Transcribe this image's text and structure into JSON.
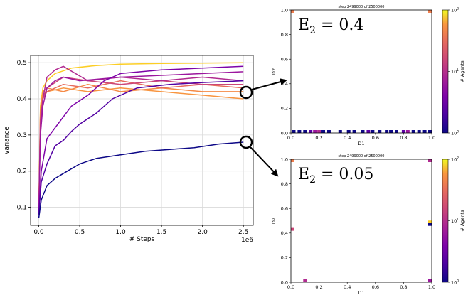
{
  "chart_data": [
    {
      "type": "line",
      "xlabel": "# Steps",
      "ylabel": "variance",
      "x_offset_label": "1e6",
      "xlim": [
        -0.1,
        2.62
      ],
      "ylim": [
        0.05,
        0.52
      ],
      "xticks": [
        0.0,
        0.5,
        1.0,
        1.5,
        2.0,
        2.5
      ],
      "xtick_labels": [
        "0.0",
        "0.5",
        "1.0",
        "1.5",
        "2.0",
        "2.5"
      ],
      "yticks": [
        0.1,
        0.2,
        0.3,
        0.4,
        0.5
      ],
      "ytick_labels": [
        "0.1",
        "0.2",
        "0.3",
        "0.4",
        "0.5"
      ],
      "grid": true,
      "series": [
        {
          "color": "#fcce25",
          "x": [
            0,
            0.02,
            0.05,
            0.1,
            0.2,
            0.4,
            0.7,
            1.0,
            1.5,
            2.0,
            2.5
          ],
          "values": [
            0.08,
            0.38,
            0.43,
            0.45,
            0.47,
            0.485,
            0.492,
            0.496,
            0.498,
            0.499,
            0.5
          ]
        },
        {
          "color": "#f89540",
          "x": [
            0,
            0.02,
            0.05,
            0.1,
            0.3,
            0.6,
            1.0,
            1.5,
            2.0,
            2.5
          ],
          "values": [
            0.08,
            0.36,
            0.41,
            0.42,
            0.43,
            0.42,
            0.43,
            0.42,
            0.41,
            0.4
          ]
        },
        {
          "color": "#f58a46",
          "x": [
            0,
            0.02,
            0.05,
            0.1,
            0.3,
            0.6,
            1.0,
            1.5,
            2.0,
            2.5
          ],
          "values": [
            0.08,
            0.37,
            0.42,
            0.43,
            0.42,
            0.44,
            0.42,
            0.43,
            0.42,
            0.42
          ]
        },
        {
          "color": "#e66c5c",
          "x": [
            0,
            0.02,
            0.05,
            0.1,
            0.3,
            0.6,
            1.0,
            1.5,
            2.0,
            2.5
          ],
          "values": [
            0.08,
            0.36,
            0.4,
            0.42,
            0.44,
            0.43,
            0.45,
            0.43,
            0.44,
            0.43
          ]
        },
        {
          "color": "#cc4778",
          "x": [
            0,
            0.02,
            0.05,
            0.1,
            0.3,
            0.6,
            1.0,
            1.5,
            2.0,
            2.5
          ],
          "values": [
            0.08,
            0.34,
            0.4,
            0.43,
            0.46,
            0.45,
            0.44,
            0.45,
            0.44,
            0.44
          ]
        },
        {
          "color": "#b12a90",
          "x": [
            0,
            0.02,
            0.05,
            0.1,
            0.2,
            0.3,
            0.6,
            1.0,
            1.5,
            2.0,
            2.5
          ],
          "values": [
            0.08,
            0.33,
            0.4,
            0.46,
            0.48,
            0.49,
            0.45,
            0.46,
            0.45,
            0.46,
            0.45
          ]
        },
        {
          "color": "#9c179e",
          "x": [
            0,
            0.02,
            0.05,
            0.1,
            0.2,
            0.3,
            0.5,
            1.0,
            1.5,
            2.0,
            2.5
          ],
          "values": [
            0.08,
            0.3,
            0.38,
            0.43,
            0.45,
            0.46,
            0.45,
            0.46,
            0.465,
            0.47,
            0.475
          ]
        },
        {
          "color": "#7e03a8",
          "x": [
            0,
            0.03,
            0.1,
            0.2,
            0.3,
            0.4,
            0.6,
            0.8,
            1.0,
            1.5,
            2.0,
            2.5
          ],
          "values": [
            0.08,
            0.2,
            0.29,
            0.32,
            0.35,
            0.38,
            0.41,
            0.45,
            0.47,
            0.48,
            0.485,
            0.49
          ]
        },
        {
          "color": "#5302a3",
          "x": [
            0,
            0.03,
            0.1,
            0.2,
            0.3,
            0.4,
            0.5,
            0.7,
            0.9,
            1.2,
            1.6,
            2.0,
            2.5
          ],
          "values": [
            0.08,
            0.17,
            0.22,
            0.27,
            0.285,
            0.31,
            0.33,
            0.36,
            0.4,
            0.43,
            0.44,
            0.445,
            0.45
          ]
        },
        {
          "color": "#0d0887",
          "x": [
            0,
            0.03,
            0.1,
            0.2,
            0.35,
            0.5,
            0.7,
            1.0,
            1.3,
            1.6,
            1.9,
            2.2,
            2.5
          ],
          "values": [
            0.07,
            0.12,
            0.16,
            0.18,
            0.2,
            0.22,
            0.235,
            0.245,
            0.255,
            0.26,
            0.265,
            0.275,
            0.28
          ]
        }
      ]
    },
    {
      "type": "heatmap",
      "title": "step 2499000 of 2500000",
      "xlabel": "D1",
      "ylabel": "D2",
      "annotation": "E2 = 0.4",
      "xlim": [
        0,
        1
      ],
      "ylim": [
        0,
        1
      ],
      "xtick_labels": [
        "0.0",
        "0.2",
        "0.4",
        "0.6",
        "0.8",
        "1.0"
      ],
      "ytick_labels": [
        "0.0",
        "0.2",
        "0.4",
        "0.6",
        "0.8",
        "1.0"
      ],
      "colorbar": {
        "label": "# Agents",
        "scale": "log",
        "tick_labels": [
          "10^0",
          "10^1",
          "10^2"
        ]
      },
      "cells": [
        {
          "x": 0.0,
          "y": 1.0,
          "color": "#f07f4f"
        },
        {
          "x": 1.0,
          "y": 1.0,
          "color": "#f07f4f"
        },
        {
          "x": 0.02,
          "y": 0.0,
          "color": "#0d0887"
        },
        {
          "x": 0.06,
          "y": 0.0,
          "color": "#0d0887"
        },
        {
          "x": 0.1,
          "y": 0.0,
          "color": "#0d0887"
        },
        {
          "x": 0.14,
          "y": 0.0,
          "color": "#5c01a6"
        },
        {
          "x": 0.17,
          "y": 0.0,
          "color": "#9c179e"
        },
        {
          "x": 0.2,
          "y": 0.0,
          "color": "#b12a90"
        },
        {
          "x": 0.23,
          "y": 0.0,
          "color": "#0d0887"
        },
        {
          "x": 0.27,
          "y": 0.0,
          "color": "#0d0887"
        },
        {
          "x": 0.35,
          "y": 0.0,
          "color": "#0d0887"
        },
        {
          "x": 0.41,
          "y": 0.0,
          "color": "#0d0887"
        },
        {
          "x": 0.45,
          "y": 0.0,
          "color": "#0d0887"
        },
        {
          "x": 0.51,
          "y": 0.0,
          "color": "#0d0887"
        },
        {
          "x": 0.55,
          "y": 0.0,
          "color": "#5c01a6"
        },
        {
          "x": 0.58,
          "y": 0.0,
          "color": "#0d0887"
        },
        {
          "x": 0.63,
          "y": 0.0,
          "color": "#0d0887"
        },
        {
          "x": 0.68,
          "y": 0.0,
          "color": "#0d0887"
        },
        {
          "x": 0.71,
          "y": 0.0,
          "color": "#0d0887"
        },
        {
          "x": 0.75,
          "y": 0.0,
          "color": "#0d0887"
        },
        {
          "x": 0.8,
          "y": 0.0,
          "color": "#5c01a6"
        },
        {
          "x": 0.83,
          "y": 0.0,
          "color": "#9c179e"
        },
        {
          "x": 0.87,
          "y": 0.0,
          "color": "#0d0887"
        },
        {
          "x": 0.91,
          "y": 0.0,
          "color": "#0d0887"
        },
        {
          "x": 0.95,
          "y": 0.0,
          "color": "#0d0887"
        },
        {
          "x": 0.99,
          "y": 0.0,
          "color": "#0d0887"
        }
      ]
    },
    {
      "type": "heatmap",
      "title": "step 2499000 of 2500000",
      "xlabel": "D1",
      "ylabel": "D2",
      "annotation": "E2 = 0.05",
      "xlim": [
        0,
        1
      ],
      "ylim": [
        0,
        1
      ],
      "xtick_labels": [
        "0.0",
        "0.2",
        "0.4",
        "0.6",
        "0.8",
        "1.0"
      ],
      "ytick_labels": [
        "0.0",
        "0.2",
        "0.4",
        "0.6",
        "0.8",
        "1.0"
      ],
      "colorbar": {
        "label": "# Agents",
        "scale": "log",
        "tick_labels": [
          "10^0",
          "10^1",
          "10^2"
        ]
      },
      "cells": [
        {
          "x": 0.0,
          "y": 1.0,
          "color": "#f07f4f"
        },
        {
          "x": 1.0,
          "y": 1.0,
          "color": "#b12a90"
        },
        {
          "x": 0.0,
          "y": 0.43,
          "color": "#cc4778"
        },
        {
          "x": 0.1,
          "y": 0.01,
          "color": "#b12a90"
        },
        {
          "x": 1.0,
          "y": 0.01,
          "color": "#9c179e"
        },
        {
          "x": 1.0,
          "y": 0.49,
          "color": "#fcce25"
        },
        {
          "x": 1.0,
          "y": 0.47,
          "color": "#0d0887"
        }
      ]
    }
  ]
}
